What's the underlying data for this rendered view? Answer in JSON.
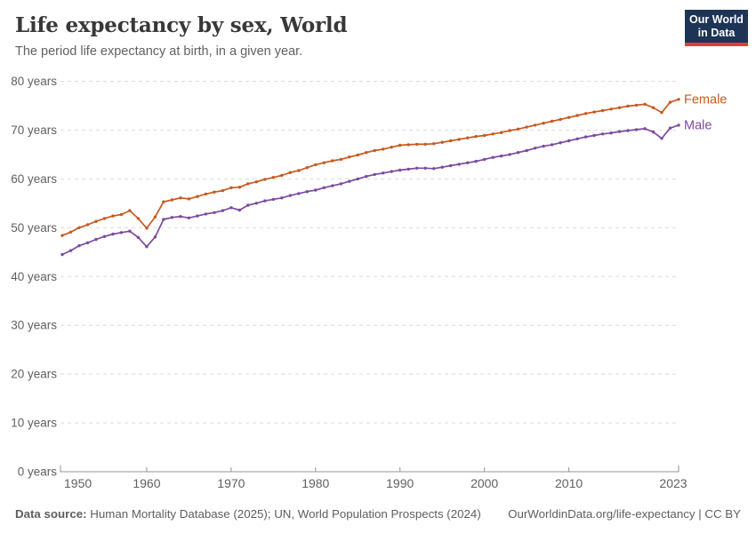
{
  "header": {
    "title": "Life expectancy by sex, World",
    "subtitle": "The period life expectancy at birth, in a given year."
  },
  "logo": {
    "line1": "Our World",
    "line2": "in Data",
    "bg_color": "#1d3456",
    "accent_color": "#dc3e32"
  },
  "footer": {
    "source_label": "Data source:",
    "source_rest": " Human Mortality Database (2025); UN, World Population Prospects (2024)",
    "link_text": "OurWorldinData.org/life-expectancy | CC BY"
  },
  "colors": {
    "female_line": "#c65a20",
    "male_line": "#7c4aa0",
    "gridline": "#dcdcdc",
    "axis": "#949494",
    "tick_text": "#606060"
  },
  "chart_data": {
    "type": "line",
    "title": "Life expectancy by sex, World",
    "xlabel": "",
    "ylabel": "years",
    "x_range": [
      1950,
      2023
    ],
    "ylim": [
      0,
      80
    ],
    "grid": "horizontal-dashed",
    "legend_position": "end-of-line-labels",
    "y_ticks": [
      0,
      10,
      20,
      30,
      40,
      50,
      60,
      70,
      80
    ],
    "y_tick_suffix": " years",
    "x_ticks": [
      1950,
      1960,
      1970,
      1980,
      1990,
      2000,
      2010,
      2023
    ],
    "start_year": 1950,
    "end_year": 2023,
    "series": [
      {
        "name": "Female",
        "color": "#c65a20",
        "values": [
          48.4,
          49.1,
          50.0,
          50.6,
          51.3,
          51.9,
          52.4,
          52.7,
          53.5,
          51.9,
          49.9,
          52.2,
          55.3,
          55.7,
          56.1,
          55.9,
          56.4,
          56.9,
          57.3,
          57.6,
          58.2,
          58.3,
          59.0,
          59.4,
          59.9,
          60.3,
          60.7,
          61.3,
          61.7,
          62.3,
          62.9,
          63.3,
          63.7,
          64.0,
          64.5,
          64.9,
          65.4,
          65.8,
          66.1,
          66.5,
          66.9,
          67.0,
          67.1,
          67.1,
          67.2,
          67.5,
          67.8,
          68.1,
          68.4,
          68.7,
          68.9,
          69.2,
          69.5,
          69.9,
          70.2,
          70.6,
          71.0,
          71.4,
          71.8,
          72.2,
          72.6,
          73.0,
          73.4,
          73.7,
          74.0,
          74.3,
          74.6,
          74.9,
          75.1,
          75.3,
          74.6,
          73.6,
          75.7,
          76.3
        ]
      },
      {
        "name": "Male",
        "color": "#7c4aa0",
        "values": [
          44.5,
          45.3,
          46.3,
          46.9,
          47.6,
          48.2,
          48.7,
          49.0,
          49.3,
          48.0,
          46.1,
          48.1,
          51.7,
          52.1,
          52.3,
          52.0,
          52.4,
          52.8,
          53.1,
          53.5,
          54.1,
          53.6,
          54.6,
          55.0,
          55.5,
          55.8,
          56.1,
          56.6,
          57.0,
          57.4,
          57.7,
          58.2,
          58.6,
          59.0,
          59.5,
          60.0,
          60.5,
          60.9,
          61.2,
          61.5,
          61.8,
          62.0,
          62.2,
          62.2,
          62.1,
          62.4,
          62.7,
          63.0,
          63.3,
          63.6,
          64.0,
          64.4,
          64.7,
          65.0,
          65.4,
          65.8,
          66.3,
          66.7,
          67.0,
          67.4,
          67.8,
          68.2,
          68.6,
          68.9,
          69.2,
          69.4,
          69.7,
          69.9,
          70.1,
          70.3,
          69.6,
          68.3,
          70.4,
          71.0
        ]
      }
    ]
  }
}
